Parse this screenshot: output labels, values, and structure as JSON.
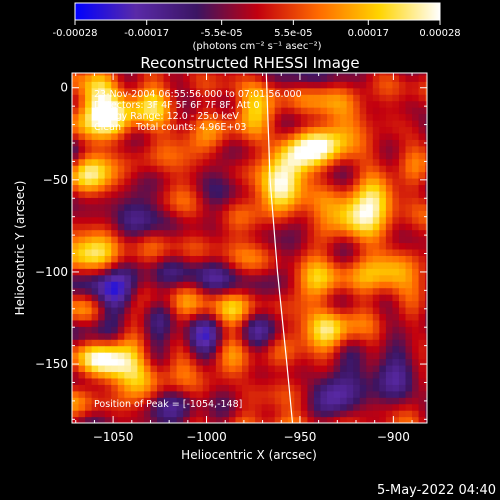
{
  "chart_data": {
    "type": "heatmap",
    "title": "Reconstructed RHESSI Image",
    "colorbar": {
      "ticks": [
        "-0.00028",
        "-0.00017",
        "-5.5e-05",
        "5.5e-05",
        "0.00017",
        "0.00028"
      ],
      "tick_values": [
        -0.00028,
        -0.00017,
        -5.5e-05,
        5.5e-05,
        0.00017,
        0.00028
      ],
      "range": [
        -0.00028,
        0.00028
      ],
      "unit_label": "(photons cm⁻² s⁻¹ asec⁻²)",
      "colormap": [
        "#0000ff",
        "#5a2aa8",
        "#3b1563",
        "#c2000f",
        "#ff6a00",
        "#ffd400",
        "#ffffff"
      ]
    },
    "info_text": [
      "23-Nov-2004 06:55:56.000 to 07:01:56.000",
      "Detectors: 3F 4F 5F 6F 7F 8F, Att 0",
      "Energy Range: 12.0 - 25.0 keV",
      "Clean     Total counts: 4.96E+03"
    ],
    "peak_text": "Position of Peak = [-1054,-148]",
    "xlabel": "Heliocentric X (arcsec)",
    "ylabel": "Heliocentric Y (arcsec)",
    "xlim": [
      -1072,
      -882
    ],
    "ylim": [
      -182,
      8
    ],
    "xticks": [
      -1050,
      -1000,
      -950,
      -900
    ],
    "xtick_labels": [
      "−1050",
      "−1000",
      "−950",
      "−900"
    ],
    "yticks": [
      0,
      -50,
      -100,
      -150
    ],
    "ytick_labels": [
      "0",
      "−50",
      "−100",
      "−150"
    ],
    "limb_line": [
      [
        -968,
        8
      ],
      [
        -966,
        -50
      ],
      [
        -962,
        -100
      ],
      [
        -957,
        -150
      ],
      [
        -954,
        -182
      ]
    ],
    "hotspots": [
      {
        "x": -1058,
        "y": -7,
        "value": 0.00022
      },
      {
        "x": -1048,
        "y": -18,
        "value": 0.00019
      },
      {
        "x": -1030,
        "y": -10,
        "value": 0.00012
      },
      {
        "x": -1060,
        "y": -45,
        "value": 0.00013
      },
      {
        "x": -1062,
        "y": -88,
        "value": 0.00016
      },
      {
        "x": -1054,
        "y": -148,
        "value": 0.00028
      },
      {
        "x": -1035,
        "y": -155,
        "value": 0.00015
      },
      {
        "x": -1010,
        "y": -150,
        "value": 0.0001
      },
      {
        "x": -1005,
        "y": -30,
        "value": 0.00011
      },
      {
        "x": -990,
        "y": -80,
        "value": 0.00012
      },
      {
        "x": -975,
        "y": -10,
        "value": 0.00016
      },
      {
        "x": -955,
        "y": -40,
        "value": 0.00022
      },
      {
        "x": -962,
        "y": -55,
        "value": 0.00024
      },
      {
        "x": -940,
        "y": -30,
        "value": 0.00018
      },
      {
        "x": -925,
        "y": -20,
        "value": 0.00015
      },
      {
        "x": -922,
        "y": -70,
        "value": 0.00026
      },
      {
        "x": -905,
        "y": -58,
        "value": 0.00017
      },
      {
        "x": -935,
        "y": -105,
        "value": 0.00014
      },
      {
        "x": -935,
        "y": -130,
        "value": 0.00021
      },
      {
        "x": -900,
        "y": -100,
        "value": 0.00019
      },
      {
        "x": -960,
        "y": -170,
        "value": 0.00012
      },
      {
        "x": -1000,
        "y": -120,
        "value": 9e-05
      }
    ],
    "coldspots": [
      {
        "x": -1048,
        "y": -115,
        "value": -0.0002
      },
      {
        "x": -1010,
        "y": -135,
        "value": -0.00017
      },
      {
        "x": -1000,
        "y": -95,
        "value": -0.00012
      },
      {
        "x": -905,
        "y": -155,
        "value": -0.00019
      },
      {
        "x": -935,
        "y": -165,
        "value": -0.00016
      },
      {
        "x": -1040,
        "y": -70,
        "value": -0.0001
      },
      {
        "x": -985,
        "y": -55,
        "value": -9e-05
      },
      {
        "x": -1020,
        "y": -170,
        "value": -0.00011
      }
    ],
    "grid": false
  },
  "footer": {
    "timestamp": "5-May-2022 04:40"
  }
}
